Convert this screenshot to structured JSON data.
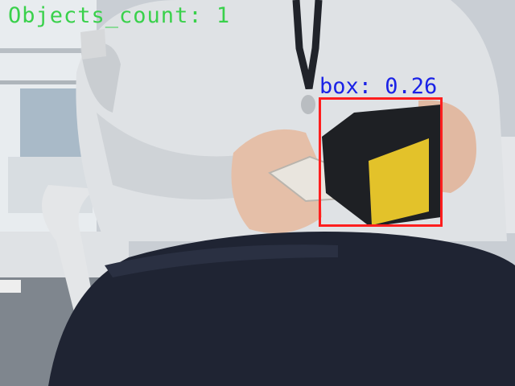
{
  "overlay": {
    "objects_count_text": "Objects_count: 1",
    "count_color": "#39d14b"
  },
  "detections": [
    {
      "label_text": "box: 0.26",
      "class": "box",
      "confidence": 0.26,
      "box_color": "#ff1e1e",
      "label_color": "#1a22e6"
    }
  ]
}
